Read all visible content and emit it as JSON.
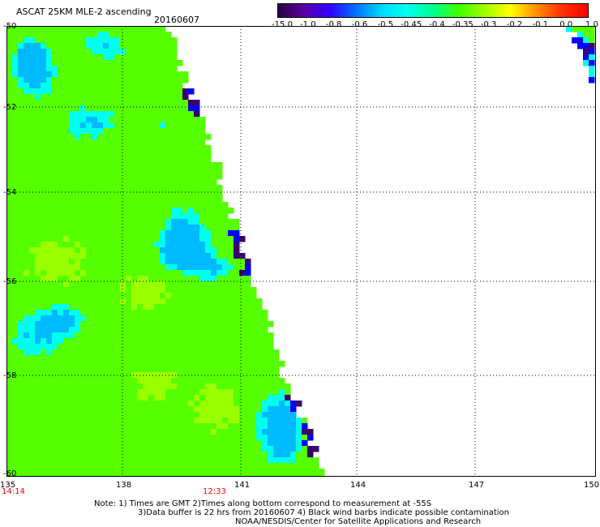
{
  "header": {
    "title": "ASCAT 25KM MLE-2 ascending",
    "date": "20160607"
  },
  "colorbar": {
    "labels": [
      "-15.0",
      "-1.0",
      "-0.8",
      "-0.6",
      "-0.5",
      "-0.45",
      "-0.4",
      "-0.35",
      "-0.3",
      "-0.2",
      "-0.1",
      "0.0",
      "1.0"
    ],
    "colors": [
      "#2a0040",
      "#5a00a0",
      "#3000ff",
      "#0070ff",
      "#00d8ff",
      "#00ffee",
      "#00ff90",
      "#40ff00",
      "#a0ff00",
      "#ffff00",
      "#ff9000",
      "#ff3000",
      "#ff0000"
    ]
  },
  "map": {
    "lat_labels": [
      "-50",
      "-52",
      "-54",
      "-56",
      "-58",
      "-60"
    ],
    "lon_labels": [
      "135",
      "138",
      "141",
      "144",
      "147",
      "150"
    ],
    "time_labels": [
      "14:14",
      "12:33"
    ],
    "gridline_style": "dotted",
    "colors": {
      "green": "#55ff00",
      "yellow_green": "#99ff00",
      "cyan": "#00ffee",
      "light_blue": "#00bbff",
      "blue": "#0000ff",
      "purple": "#3a0070"
    }
  },
  "notes": {
    "line1": "Note: 1) Times are GMT 2)Times along bottom correspond to measurement at -55S",
    "line2": "3)Data buffer is 22 hrs from 20160607 4) Black wind barbs indicate possible contamination",
    "line3": "NOAA/NESDIS/Center for Satellite Applications and Research"
  }
}
